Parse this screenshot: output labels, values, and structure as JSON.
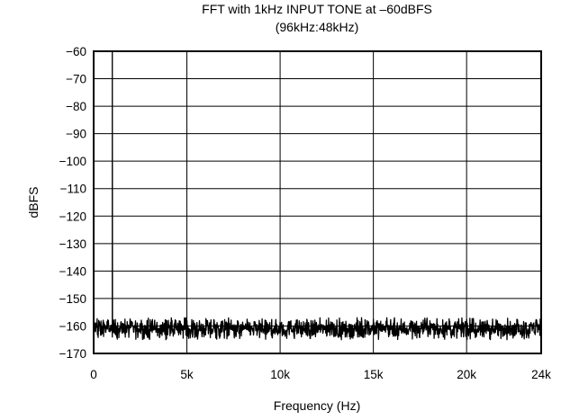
{
  "chart_data": {
    "type": "line",
    "title": "FFT with 1kHz INPUT TONE at –60dBFS",
    "subtitle": "(96kHz:48kHz)",
    "xlabel": "Frequency (Hz)",
    "ylabel": "dBFS",
    "xlim": [
      0,
      24000
    ],
    "ylim": [
      -170,
      -60
    ],
    "grid": true,
    "x_ticks": [
      0,
      5000,
      10000,
      15000,
      20000,
      24000
    ],
    "x_tick_labels": [
      "0",
      "5k",
      "10k",
      "15k",
      "20k",
      "24k"
    ],
    "y_ticks": [
      -60,
      -70,
      -80,
      -90,
      -100,
      -110,
      -120,
      -130,
      -140,
      -150,
      -160,
      -170
    ],
    "y_tick_labels": [
      "−60",
      "−70",
      "−80",
      "−90",
      "−100",
      "−110",
      "−120",
      "−130",
      "−140",
      "−150",
      "−160",
      "−170"
    ],
    "line_color": "#000000",
    "series": [
      {
        "noise_floor": -161,
        "noise_range": [
          -165,
          -157
        ],
        "peak": {
          "x": 1000,
          "y": -60
        }
      }
    ]
  }
}
